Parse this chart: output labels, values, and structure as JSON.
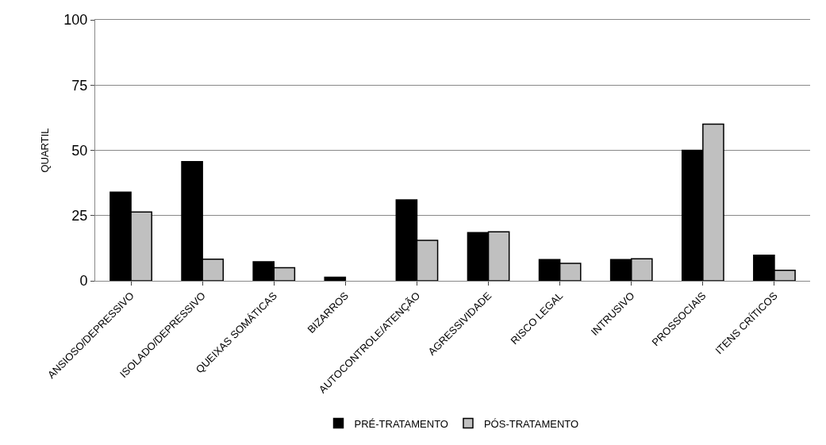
{
  "chart_data": {
    "type": "bar",
    "ylabel": "QUARTIL",
    "categories": [
      "ANSIOSO/DEPRESSIVO",
      "ISOLADO/DEPRESSIVO",
      "QUEIXAS SOMÁTICAS",
      "BIZARROS",
      "AUTOCONTROLE/ATENÇÃO",
      "AGRESSIVIDADE",
      "RISCO LEGAL",
      "INTRUSIVO",
      "PROSSOCIAIS",
      "ITENS CRÍTICOS"
    ],
    "series": [
      {
        "name": "PRÉ-TRATAMENTO",
        "color": "#000000",
        "values": [
          34,
          45.7,
          7.3,
          1.4,
          31,
          18.5,
          8.1,
          8.1,
          50,
          9.8
        ]
      },
      {
        "name": "PÓS-TRATAMENTO",
        "color": "#c0c0c0",
        "values": [
          26.4,
          8.3,
          5,
          null,
          15.5,
          18.8,
          6.7,
          8.4,
          60,
          4
        ]
      }
    ],
    "ylim": [
      0,
      100
    ],
    "yticks": [
      0,
      25,
      50,
      75,
      100
    ],
    "grid": "y",
    "legend": "bottom"
  }
}
